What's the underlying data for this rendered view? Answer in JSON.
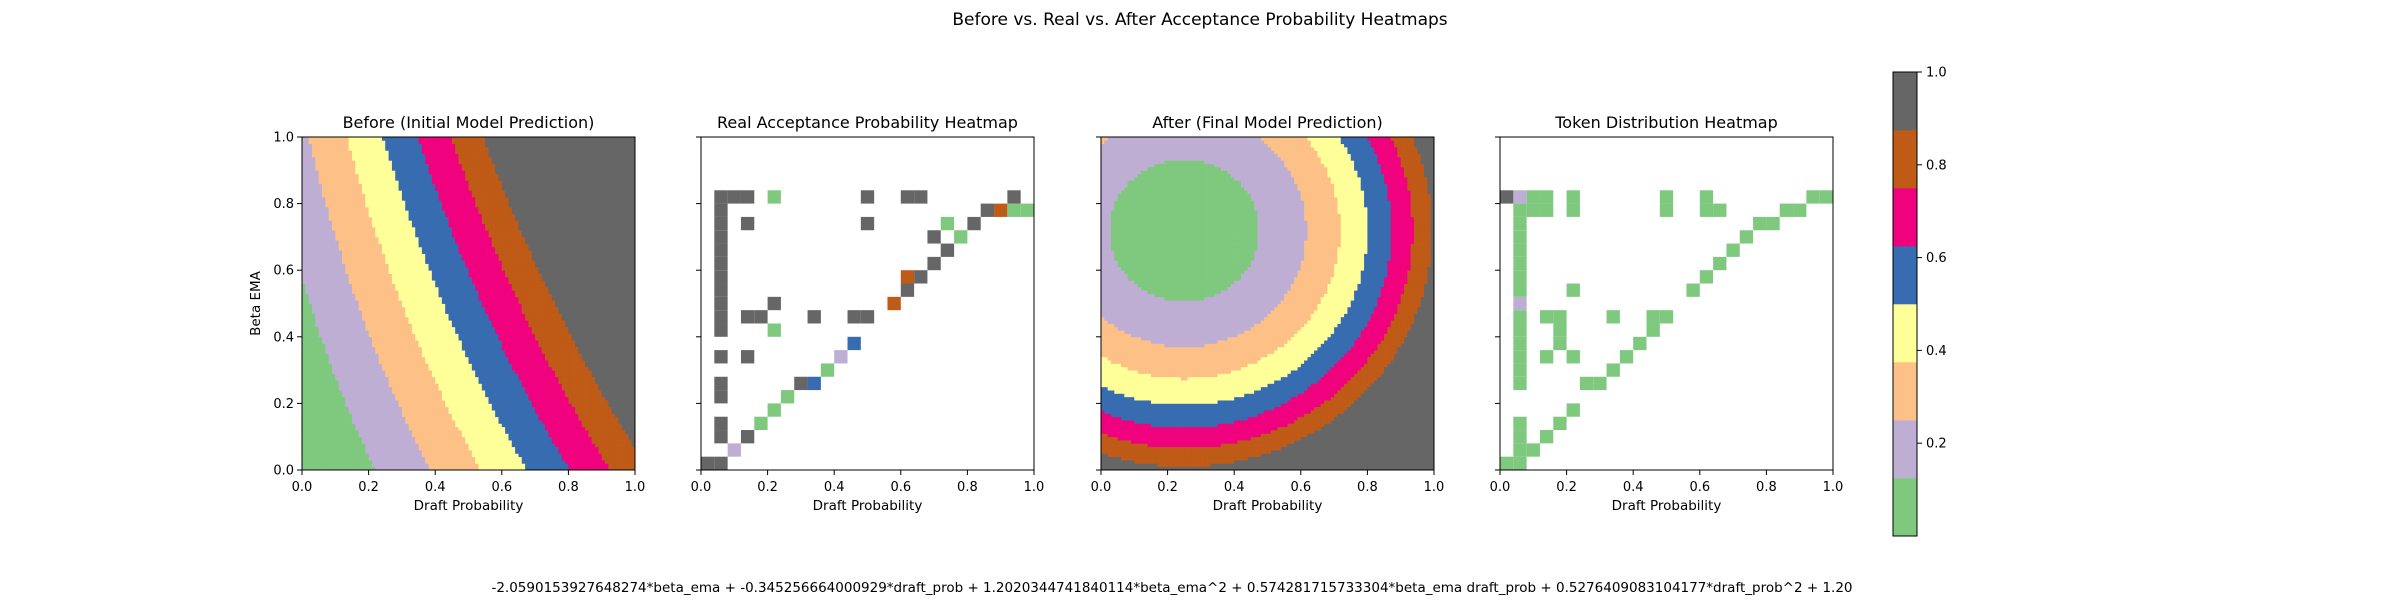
{
  "figure": {
    "suptitle": "Before vs. Real vs. After Acceptance Probability Heatmaps",
    "formula": "-2.0590153927648274*beta_ema + -0.345256664000929*draft_prob + 1.2020344741840114*beta_ema^2 + 0.574281715733304*beta_ema draft_prob + 0.5276409083104177*draft_prob^2 + 1.20"
  },
  "colors": {
    "levels": [
      "#7fc97f",
      "#beaed4",
      "#fdc086",
      "#ffff99",
      "#386cb0",
      "#f0027f",
      "#bf5b17",
      "#666666"
    ],
    "frame": "#000000",
    "background": "#ffffff"
  },
  "colorbar": {
    "ticks": [
      "0.2",
      "0.4",
      "0.6",
      "0.8",
      "1.0"
    ],
    "tick_values": [
      0.2,
      0.4,
      0.6,
      0.8,
      1.0
    ],
    "range": [
      0.0,
      1.0
    ],
    "cmap": "Accent"
  },
  "axes": {
    "xticks": [
      "0.0",
      "0.2",
      "0.4",
      "0.6",
      "0.8",
      "1.0"
    ],
    "yticks": [
      "0.0",
      "0.2",
      "0.4",
      "0.6",
      "0.8",
      "1.0"
    ]
  },
  "chart_data": [
    {
      "type": "heatmap",
      "title": "Before (Initial Model Prediction)",
      "xlabel": "Draft Probability",
      "ylabel": "Beta EMA",
      "xlim": [
        0,
        1
      ],
      "ylim": [
        0,
        1
      ],
      "z_description": "smooth acceptance probability surface increasing with draft probability and beta EMA",
      "model": "before"
    },
    {
      "type": "heatmap",
      "title": "Real Acceptance Probability Heatmap",
      "xlabel": "Draft Probability",
      "ylabel": "",
      "xlim": [
        0,
        1
      ],
      "ylim": [
        0,
        1
      ],
      "cell_size": 0.04,
      "cells": [
        [
          0.0,
          0.0,
          1.0
        ],
        [
          0.04,
          0.0,
          1.0
        ],
        [
          0.08,
          0.04,
          0.2
        ],
        [
          0.04,
          0.08,
          1.0
        ],
        [
          0.12,
          0.08,
          1.0
        ],
        [
          0.04,
          0.12,
          1.0
        ],
        [
          0.16,
          0.12,
          0.0
        ],
        [
          0.2,
          0.16,
          0.0
        ],
        [
          0.04,
          0.2,
          1.0
        ],
        [
          0.24,
          0.2,
          0.0
        ],
        [
          0.04,
          0.24,
          1.0
        ],
        [
          0.28,
          0.24,
          1.0
        ],
        [
          0.32,
          0.24,
          0.5
        ],
        [
          0.36,
          0.28,
          0.0
        ],
        [
          0.04,
          0.32,
          1.0
        ],
        [
          0.12,
          0.32,
          1.0
        ],
        [
          0.4,
          0.32,
          0.2
        ],
        [
          0.44,
          0.36,
          0.5
        ],
        [
          0.04,
          0.4,
          1.0
        ],
        [
          0.2,
          0.4,
          0.0
        ],
        [
          0.04,
          0.44,
          1.0
        ],
        [
          0.12,
          0.44,
          1.0
        ],
        [
          0.16,
          0.44,
          1.0
        ],
        [
          0.32,
          0.44,
          1.0
        ],
        [
          0.44,
          0.44,
          1.0
        ],
        [
          0.48,
          0.44,
          1.0
        ],
        [
          0.04,
          0.48,
          1.0
        ],
        [
          0.2,
          0.48,
          1.0
        ],
        [
          0.56,
          0.48,
          0.8
        ],
        [
          0.04,
          0.52,
          1.0
        ],
        [
          0.6,
          0.52,
          1.0
        ],
        [
          0.04,
          0.56,
          1.0
        ],
        [
          0.6,
          0.56,
          0.8
        ],
        [
          0.64,
          0.56,
          1.0
        ],
        [
          0.04,
          0.6,
          1.0
        ],
        [
          0.68,
          0.6,
          1.0
        ],
        [
          0.04,
          0.64,
          1.0
        ],
        [
          0.72,
          0.64,
          1.0
        ],
        [
          0.04,
          0.68,
          1.0
        ],
        [
          0.68,
          0.68,
          1.0
        ],
        [
          0.76,
          0.68,
          0.0
        ],
        [
          0.04,
          0.72,
          1.0
        ],
        [
          0.12,
          0.72,
          1.0
        ],
        [
          0.48,
          0.72,
          1.0
        ],
        [
          0.72,
          0.72,
          0.0
        ],
        [
          0.8,
          0.72,
          1.0
        ],
        [
          0.04,
          0.76,
          1.0
        ],
        [
          0.84,
          0.76,
          1.0
        ],
        [
          0.88,
          0.76,
          0.8
        ],
        [
          0.92,
          0.76,
          0.0
        ],
        [
          0.96,
          0.76,
          0.0
        ],
        [
          0.04,
          0.8,
          1.0
        ],
        [
          0.08,
          0.8,
          1.0
        ],
        [
          0.12,
          0.8,
          1.0
        ],
        [
          0.2,
          0.8,
          0.0
        ],
        [
          0.48,
          0.8,
          1.0
        ],
        [
          0.6,
          0.8,
          1.0
        ],
        [
          0.64,
          0.8,
          1.0
        ],
        [
          0.92,
          0.8,
          1.0
        ]
      ]
    },
    {
      "type": "heatmap",
      "title": "After (Final Model Prediction)",
      "xlabel": "Draft Probability",
      "ylabel": "",
      "xlim": [
        0,
        1
      ],
      "ylim": [
        0,
        1
      ],
      "z_description": "acceptance probability surface lowest near draft 0.25, beta 0.7 and rising outward",
      "model": "after"
    },
    {
      "type": "heatmap",
      "title": "Token Distribution Heatmap",
      "xlabel": "Draft Probability",
      "ylabel": "",
      "xlim": [
        0,
        1
      ],
      "ylim": [
        0,
        1
      ],
      "cell_size": 0.04,
      "cells": [
        [
          0.0,
          0.0,
          0.0
        ],
        [
          0.04,
          0.0,
          0.0
        ],
        [
          0.04,
          0.04,
          0.0
        ],
        [
          0.08,
          0.04,
          0.0
        ],
        [
          0.04,
          0.08,
          0.0
        ],
        [
          0.12,
          0.08,
          0.0
        ],
        [
          0.04,
          0.12,
          0.0
        ],
        [
          0.16,
          0.12,
          0.0
        ],
        [
          0.2,
          0.16,
          0.0
        ],
        [
          0.04,
          0.24,
          0.0
        ],
        [
          0.24,
          0.24,
          0.0
        ],
        [
          0.28,
          0.24,
          0.0
        ],
        [
          0.04,
          0.28,
          0.0
        ],
        [
          0.32,
          0.28,
          0.0
        ],
        [
          0.04,
          0.32,
          0.0
        ],
        [
          0.12,
          0.32,
          0.0
        ],
        [
          0.2,
          0.32,
          0.0
        ],
        [
          0.36,
          0.32,
          0.0
        ],
        [
          0.04,
          0.36,
          0.0
        ],
        [
          0.16,
          0.36,
          0.0
        ],
        [
          0.4,
          0.36,
          0.0
        ],
        [
          0.04,
          0.4,
          0.0
        ],
        [
          0.16,
          0.4,
          0.0
        ],
        [
          0.44,
          0.4,
          0.0
        ],
        [
          0.04,
          0.44,
          0.0
        ],
        [
          0.12,
          0.44,
          0.0
        ],
        [
          0.16,
          0.44,
          0.0
        ],
        [
          0.32,
          0.44,
          0.0
        ],
        [
          0.44,
          0.44,
          0.0
        ],
        [
          0.48,
          0.44,
          0.0
        ],
        [
          0.04,
          0.48,
          0.2
        ],
        [
          0.04,
          0.52,
          0.0
        ],
        [
          0.2,
          0.52,
          0.0
        ],
        [
          0.56,
          0.52,
          0.0
        ],
        [
          0.04,
          0.56,
          0.0
        ],
        [
          0.6,
          0.56,
          0.0
        ],
        [
          0.04,
          0.6,
          0.0
        ],
        [
          0.64,
          0.6,
          0.0
        ],
        [
          0.04,
          0.64,
          0.0
        ],
        [
          0.68,
          0.64,
          0.0
        ],
        [
          0.04,
          0.68,
          0.0
        ],
        [
          0.72,
          0.68,
          0.0
        ],
        [
          0.04,
          0.72,
          0.0
        ],
        [
          0.76,
          0.72,
          0.0
        ],
        [
          0.8,
          0.72,
          0.0
        ],
        [
          0.04,
          0.76,
          0.0
        ],
        [
          0.08,
          0.76,
          0.0
        ],
        [
          0.12,
          0.76,
          0.0
        ],
        [
          0.2,
          0.76,
          0.0
        ],
        [
          0.48,
          0.76,
          0.0
        ],
        [
          0.6,
          0.76,
          0.0
        ],
        [
          0.64,
          0.76,
          0.0
        ],
        [
          0.84,
          0.76,
          0.0
        ],
        [
          0.88,
          0.76,
          0.0
        ],
        [
          0.04,
          0.8,
          0.2
        ],
        [
          0.0,
          0.8,
          1.0
        ],
        [
          0.08,
          0.8,
          0.0
        ],
        [
          0.12,
          0.8,
          0.0
        ],
        [
          0.2,
          0.8,
          0.0
        ],
        [
          0.48,
          0.8,
          0.0
        ],
        [
          0.6,
          0.8,
          0.0
        ],
        [
          0.92,
          0.8,
          0.0
        ],
        [
          0.96,
          0.8,
          0.0
        ]
      ]
    }
  ]
}
